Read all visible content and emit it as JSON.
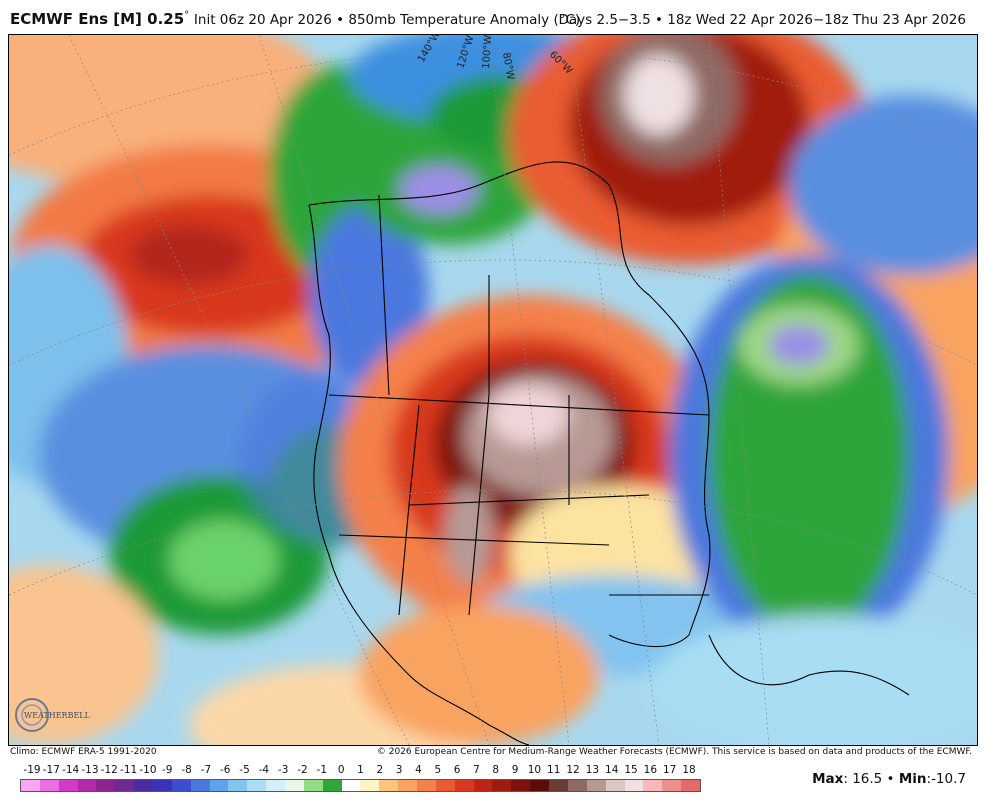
{
  "title": {
    "model": "ECMWF Ens [M] 0.25",
    "degree": "°",
    "description": "Init 06z 20 Apr 2026 • 850mb Temperature Anomaly (°C)",
    "valid": "Days 2.5−3.5 • 18z Wed 22 Apr 2026−18z Thu 23 Apr 2026"
  },
  "map": {
    "longitude_labels": [
      "140°W",
      "120°W",
      "100°W",
      "80°W",
      "60°W"
    ],
    "logo_text": "WEATHERBELL"
  },
  "footer": {
    "climo": "Climo: ECMWF ERA-5 1991-2020",
    "copyright": "© 2026 European Centre for Medium-Range Weather Forecasts (ECMWF). This service is based on data and products of the ECMWF."
  },
  "colorbar": {
    "labels": [
      "-19",
      "-17",
      "-14",
      "-13",
      "-12",
      "-11",
      "-10",
      "-9",
      "-8",
      "-7",
      "-6",
      "-5",
      "-4",
      "-3",
      "-2",
      "-1",
      "0",
      "1",
      "2",
      "3",
      "4",
      "5",
      "6",
      "7",
      "8",
      "9",
      "10",
      "11",
      "12",
      "13",
      "14",
      "15",
      "16",
      "17",
      "18"
    ],
    "colors": [
      "#f9a7f0",
      "#ea6fe0",
      "#d43ac9",
      "#b52aa8",
      "#8e2390",
      "#6e2a8f",
      "#4b2ca0",
      "#3a33b8",
      "#3d4dd0",
      "#4b78de",
      "#5fa3ea",
      "#82c3ef",
      "#a8ddf3",
      "#d2eef6",
      "#e9f6ea",
      "#c7edb7",
      "#93dc86",
      "#5cc35b",
      "#2fa53a",
      "#168a2c",
      "#ffffff",
      "#fdf5c8",
      "#fde3a0",
      "#fcc57f",
      "#f9a361",
      "#f4804a",
      "#ea5b33",
      "#d8381f",
      "#bd2415",
      "#a01a10",
      "#7e120b",
      "#5c0c08",
      "#6b3b34",
      "#8f6963",
      "#b79994",
      "#dcc7c4",
      "#efe1e2"
    ],
    "swatch_palette": [
      "#f9a7f0",
      "#ea6fe0",
      "#d43ac9",
      "#b52aa8",
      "#8e2390",
      "#6e2a8f",
      "#4b2ca0",
      "#3a33b8",
      "#3d4dd0",
      "#4b78de",
      "#5fa3ea",
      "#82c3ef",
      "#a8ddf3",
      "#d2eef6",
      "#e9f6ea",
      "#93dc86",
      "#2fa53a",
      "#ffffff",
      "#fdf5c8",
      "#fcc57f",
      "#f9a361",
      "#f4804a",
      "#ea5b33",
      "#d8381f",
      "#bd2415",
      "#a01a10",
      "#7e120b",
      "#5c0c08",
      "#6b3b34",
      "#8f6963",
      "#b79994",
      "#dcc7c4",
      "#efe1e2",
      "#f6b8b8",
      "#ee8f8f",
      "#e46a6a"
    ]
  },
  "stats": {
    "max_label": "Max",
    "max_value": "16.5",
    "separator": "•",
    "min_label": "Min",
    "min_value": "-10.7"
  }
}
